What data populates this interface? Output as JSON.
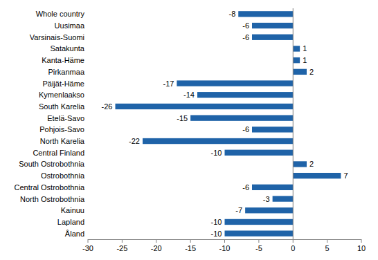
{
  "chart_data": {
    "type": "bar",
    "orientation": "horizontal",
    "categories": [
      "Whole country",
      "Uusimaa",
      "Varsinais-Suomi",
      "Satakunta",
      "Kanta-Häme",
      "Pirkanmaa",
      "Päijät-Häme",
      "Kymenlaakso",
      "South Karelia",
      "Etelä-Savo",
      "Pohjois-Savo",
      "North Karelia",
      "Central Finland",
      "South Ostrobothnia",
      "Ostrobothnia",
      "Central Ostrobothnia",
      "North Ostrobothnia",
      "Kainuu",
      "Lapland",
      "Åland"
    ],
    "values": [
      -8,
      -6,
      -6,
      1,
      1,
      2,
      -17,
      -14,
      -26,
      -15,
      -6,
      -22,
      -10,
      2,
      7,
      -6,
      -3,
      -7,
      -10,
      -10
    ],
    "color": "#1f63a8",
    "xlim": [
      -30,
      10
    ],
    "xticks": [
      -30,
      -25,
      -20,
      -15,
      -10,
      -5,
      0,
      5,
      10
    ],
    "grid": false,
    "data_labels": true
  }
}
